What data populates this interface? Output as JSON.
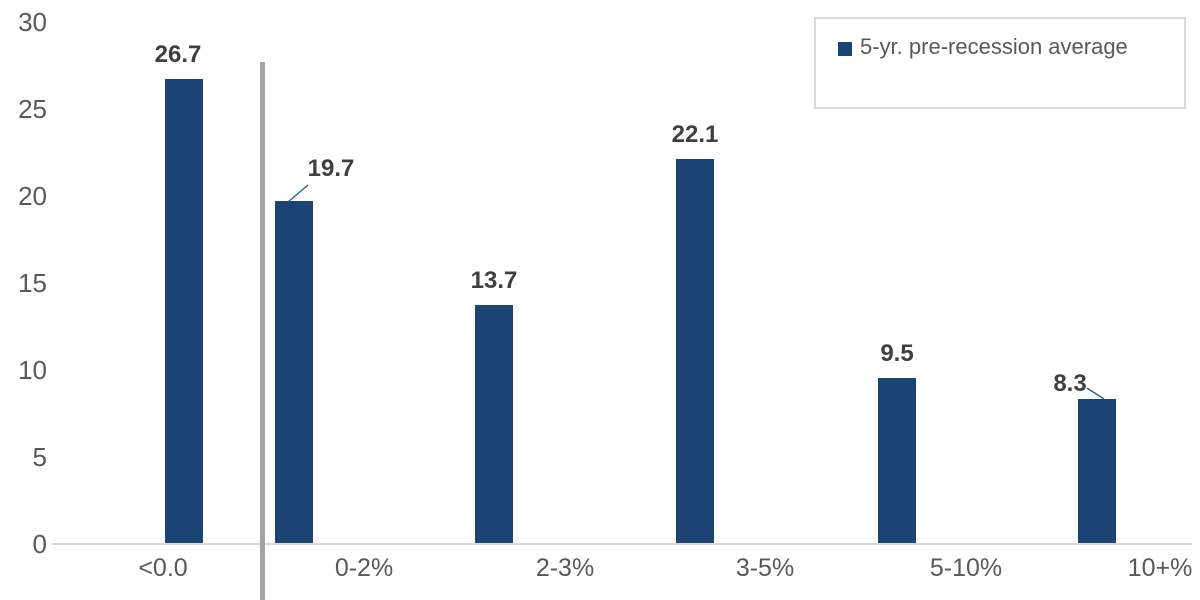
{
  "chart_data": {
    "type": "bar",
    "title": "",
    "categories": [
      "<0.0",
      "0-2%",
      "2-3%",
      "3-5%",
      "5-10%",
      "10+%"
    ],
    "series": [
      {
        "name": "5-yr. pre-recession average",
        "values": [
          26.7,
          19.7,
          13.7,
          22.1,
          9.5,
          8.3
        ]
      }
    ],
    "value_labels": [
      "26.7",
      "19.7",
      "13.7",
      "22.1",
      "9.5",
      "8.3"
    ],
    "xlabel": "",
    "ylabel": "",
    "ylim": [
      0,
      30
    ],
    "y_ticks": [
      0,
      5,
      10,
      15,
      20,
      25,
      30
    ],
    "grid": "off",
    "legend": {
      "label": "5-yr. pre-recession average",
      "position": "top-right"
    },
    "annotations": {
      "vertical_divider_after_category": "<0.0",
      "callout_value_labels": [
        "19.7",
        "8.3"
      ]
    },
    "colors": {
      "bar": "#1b4373",
      "axis_line": "#d9d9d9",
      "tick_label": "#595959",
      "value_label": "#3f3f3f",
      "divider": "#a3a3a3",
      "callout_line": "#2f5d91",
      "legend_border": "#d9d9d9",
      "legend_text": "#595959"
    }
  }
}
